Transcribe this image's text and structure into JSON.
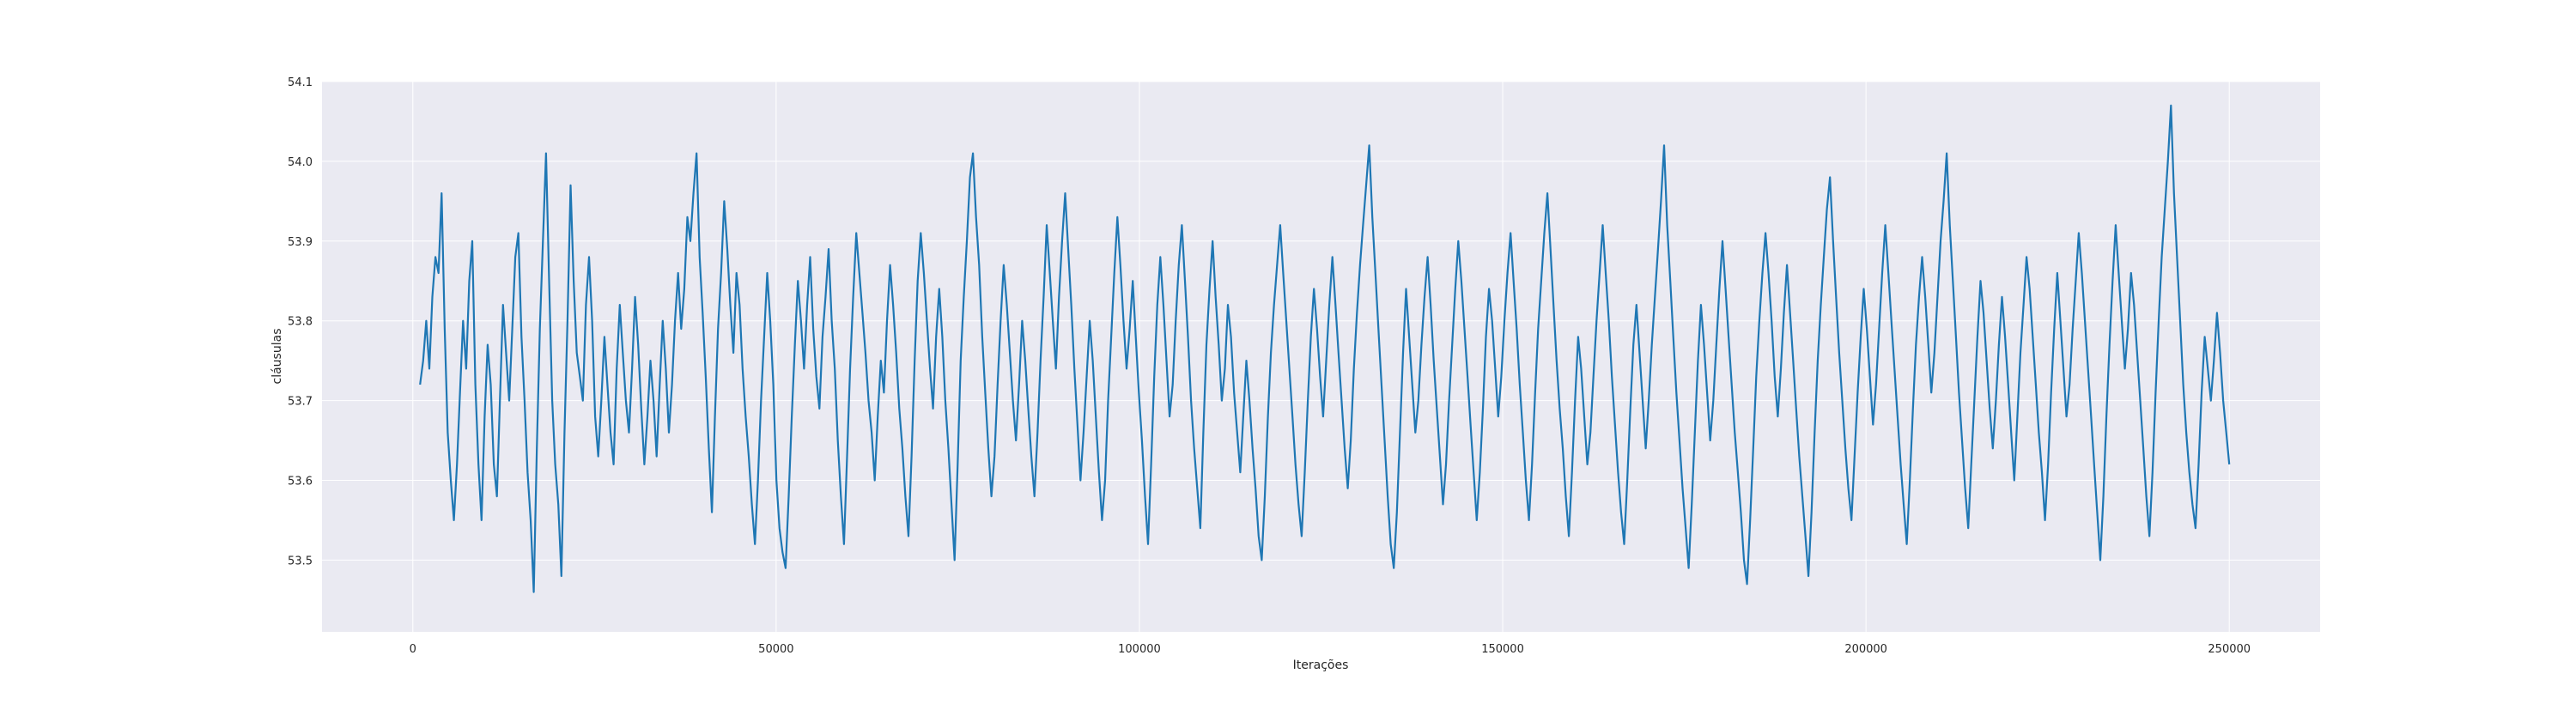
{
  "chart_data": {
    "type": "line",
    "title": "",
    "xlabel": "Iterações",
    "ylabel": "cláusulas",
    "xlim": [
      -12500,
      262500
    ],
    "ylim": [
      53.41,
      54.1
    ],
    "x_ticks": [
      0,
      50000,
      100000,
      150000,
      200000,
      250000
    ],
    "y_ticks": [
      53.5,
      53.6,
      53.7,
      53.8,
      53.9,
      54.0,
      54.1
    ],
    "x_tick_labels": [
      "0",
      "50000",
      "100000",
      "150000",
      "200000",
      "250000"
    ],
    "y_tick_labels": [
      "53.5",
      "53.6",
      "53.7",
      "53.8",
      "53.9",
      "54.0",
      "54.1"
    ],
    "grid": true,
    "background": "#eaeaf2",
    "series": [
      {
        "color": "#1f77b4",
        "x_start": 1000,
        "x_end": 250000,
        "values": [
          53.72,
          53.75,
          53.8,
          53.74,
          53.83,
          53.88,
          53.86,
          53.96,
          53.79,
          53.66,
          53.6,
          53.55,
          53.62,
          53.71,
          53.8,
          53.74,
          53.85,
          53.9,
          53.72,
          53.62,
          53.55,
          53.68,
          53.77,
          53.72,
          53.62,
          53.58,
          53.7,
          53.82,
          53.76,
          53.7,
          53.79,
          53.88,
          53.91,
          53.78,
          53.7,
          53.61,
          53.55,
          53.46,
          53.64,
          53.79,
          53.9,
          54.01,
          53.85,
          53.7,
          53.62,
          53.57,
          53.48,
          53.66,
          53.8,
          53.97,
          53.85,
          53.76,
          53.73,
          53.7,
          53.82,
          53.88,
          53.8,
          53.68,
          53.63,
          53.7,
          53.78,
          53.72,
          53.66,
          53.62,
          53.74,
          53.82,
          53.76,
          53.7,
          53.66,
          53.74,
          53.83,
          53.77,
          53.69,
          53.62,
          53.68,
          53.75,
          53.7,
          53.63,
          53.72,
          53.8,
          53.74,
          53.66,
          53.72,
          53.8,
          53.86,
          53.79,
          53.84,
          53.93,
          53.9,
          53.96,
          54.01,
          53.88,
          53.81,
          53.73,
          53.64,
          53.56,
          53.68,
          53.79,
          53.86,
          53.95,
          53.89,
          53.82,
          53.76,
          53.86,
          53.82,
          53.74,
          53.68,
          53.63,
          53.57,
          53.52,
          53.6,
          53.7,
          53.78,
          53.86,
          53.8,
          53.72,
          53.6,
          53.54,
          53.51,
          53.49,
          53.58,
          53.68,
          53.77,
          53.85,
          53.8,
          53.74,
          53.82,
          53.88,
          53.79,
          53.73,
          53.69,
          53.78,
          53.83,
          53.89,
          53.8,
          53.74,
          53.65,
          53.58,
          53.52,
          53.63,
          53.74,
          53.83,
          53.91,
          53.86,
          53.81,
          53.76,
          53.7,
          53.66,
          53.6,
          53.68,
          53.75,
          53.71,
          53.8,
          53.87,
          53.82,
          53.76,
          53.69,
          53.64,
          53.58,
          53.53,
          53.63,
          53.75,
          53.85,
          53.91,
          53.86,
          53.8,
          53.74,
          53.69,
          53.78,
          53.84,
          53.78,
          53.7,
          53.64,
          53.57,
          53.5,
          53.62,
          53.75,
          53.83,
          53.9,
          53.98,
          54.01,
          53.93,
          53.87,
          53.78,
          53.71,
          53.64,
          53.58,
          53.63,
          53.72,
          53.8,
          53.87,
          53.82,
          53.76,
          53.7,
          53.65,
          53.72,
          53.8,
          53.75,
          53.69,
          53.63,
          53.58,
          53.66,
          53.75,
          53.83,
          53.92,
          53.86,
          53.8,
          53.74,
          53.83,
          53.9,
          53.96,
          53.89,
          53.82,
          53.74,
          53.67,
          53.6,
          53.66,
          53.73,
          53.8,
          53.75,
          53.68,
          53.61,
          53.55,
          53.6,
          53.7,
          53.78,
          53.86,
          53.93,
          53.87,
          53.8,
          53.74,
          53.79,
          53.85,
          53.78,
          53.71,
          53.65,
          53.58,
          53.52,
          53.62,
          53.73,
          53.82,
          53.88,
          53.82,
          53.75,
          53.68,
          53.72,
          53.8,
          53.87,
          53.92,
          53.85,
          53.78,
          53.7,
          53.64,
          53.59,
          53.54,
          53.66,
          53.77,
          53.84,
          53.9,
          53.83,
          53.77,
          53.7,
          53.74,
          53.82,
          53.78,
          53.71,
          53.66,
          53.61,
          53.68,
          53.75,
          53.7,
          53.64,
          53.59,
          53.53,
          53.5,
          53.58,
          53.68,
          53.76,
          53.82,
          53.87,
          53.92,
          53.86,
          53.8,
          53.74,
          53.68,
          53.62,
          53.57,
          53.53,
          53.61,
          53.7,
          53.78,
          53.84,
          53.79,
          53.73,
          53.68,
          53.75,
          53.82,
          53.88,
          53.82,
          53.76,
          53.7,
          53.64,
          53.59,
          53.65,
          53.74,
          53.81,
          53.87,
          53.92,
          53.97,
          54.02,
          53.93,
          53.86,
          53.79,
          53.72,
          53.65,
          53.58,
          53.52,
          53.49,
          53.56,
          53.66,
          53.76,
          53.84,
          53.78,
          53.72,
          53.66,
          53.7,
          53.77,
          53.83,
          53.88,
          53.82,
          53.75,
          53.69,
          53.63,
          53.57,
          53.62,
          53.7,
          53.77,
          53.84,
          53.9,
          53.85,
          53.79,
          53.73,
          53.67,
          53.61,
          53.55,
          53.61,
          53.69,
          53.78,
          53.84,
          53.8,
          53.74,
          53.68,
          53.73,
          53.8,
          53.86,
          53.91,
          53.85,
          53.79,
          53.72,
          53.66,
          53.6,
          53.55,
          53.62,
          53.71,
          53.79,
          53.85,
          53.91,
          53.96,
          53.89,
          53.82,
          53.75,
          53.69,
          53.64,
          53.58,
          53.53,
          53.61,
          53.7,
          53.78,
          53.74,
          53.68,
          53.62,
          53.66,
          53.73,
          53.8,
          53.86,
          53.92,
          53.86,
          53.8,
          53.73,
          53.67,
          53.61,
          53.56,
          53.52,
          53.6,
          53.69,
          53.77,
          53.82,
          53.76,
          53.7,
          53.64,
          53.7,
          53.77,
          53.83,
          53.89,
          53.95,
          54.02,
          53.92,
          53.85,
          53.78,
          53.71,
          53.65,
          53.59,
          53.54,
          53.49,
          53.57,
          53.66,
          53.75,
          53.82,
          53.77,
          53.71,
          53.65,
          53.7,
          53.77,
          53.84,
          53.9,
          53.84,
          53.78,
          53.72,
          53.66,
          53.61,
          53.56,
          53.5,
          53.47,
          53.55,
          53.64,
          53.73,
          53.8,
          53.86,
          53.91,
          53.86,
          53.8,
          53.73,
          53.68,
          53.74,
          53.81,
          53.87,
          53.81,
          53.75,
          53.69,
          53.63,
          53.58,
          53.53,
          53.48,
          53.56,
          53.66,
          53.75,
          53.82,
          53.88,
          53.94,
          53.98,
          53.9,
          53.83,
          53.76,
          53.7,
          53.64,
          53.59,
          53.55,
          53.63,
          53.71,
          53.78,
          53.84,
          53.79,
          53.73,
          53.67,
          53.72,
          53.79,
          53.86,
          53.92,
          53.86,
          53.8,
          53.74,
          53.68,
          53.62,
          53.57,
          53.52,
          53.6,
          53.69,
          53.77,
          53.83,
          53.88,
          53.83,
          53.77,
          53.71,
          53.76,
          53.83,
          53.9,
          53.95,
          54.01,
          53.92,
          53.85,
          53.78,
          53.71,
          53.65,
          53.59,
          53.54,
          53.62,
          53.7,
          53.78,
          53.85,
          53.81,
          53.75,
          53.69,
          53.64,
          53.7,
          53.77,
          53.83,
          53.78,
          53.72,
          53.66,
          53.6,
          53.68,
          53.76,
          53.82,
          53.88,
          53.84,
          53.78,
          53.72,
          53.66,
          53.61,
          53.55,
          53.62,
          53.71,
          53.79,
          53.86,
          53.8,
          53.74,
          53.68,
          53.72,
          53.79,
          53.85,
          53.91,
          53.86,
          53.8,
          53.74,
          53.68,
          53.62,
          53.56,
          53.5,
          53.58,
          53.68,
          53.77,
          53.85,
          53.92,
          53.86,
          53.8,
          53.74,
          53.79,
          53.86,
          53.82,
          53.76,
          53.7,
          53.64,
          53.58,
          53.53,
          53.61,
          53.71,
          53.8,
          53.88,
          53.94,
          54.0,
          54.07,
          53.96,
          53.88,
          53.8,
          53.72,
          53.66,
          53.61,
          53.57,
          53.54,
          53.62,
          53.71,
          53.78,
          53.74,
          53.7,
          53.75,
          53.81,
          53.76,
          53.7,
          53.66,
          53.62
        ]
      }
    ]
  }
}
